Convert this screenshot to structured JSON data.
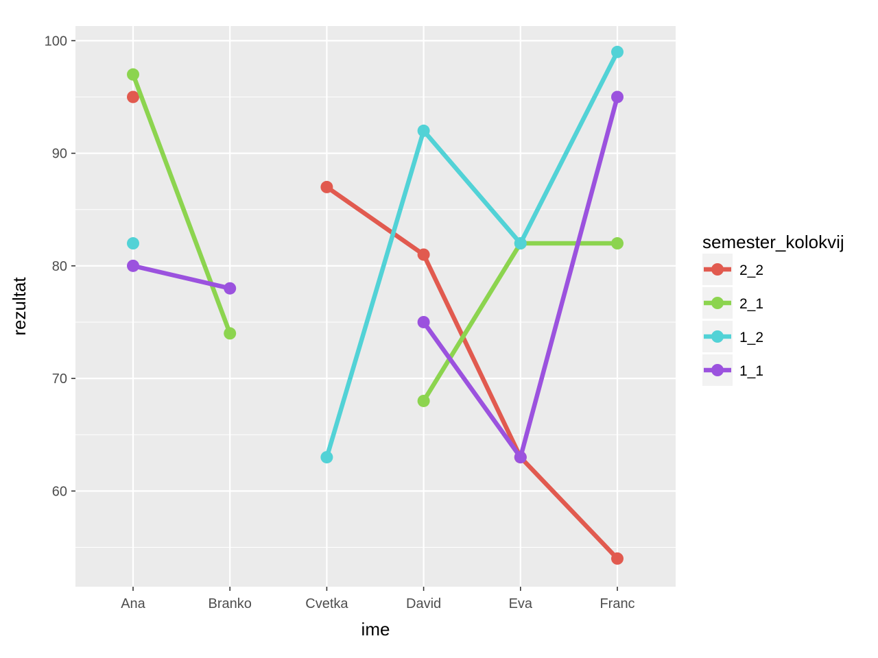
{
  "chart_data": {
    "type": "line",
    "xlabel": "ime",
    "ylabel": "rezultat",
    "categories": [
      "Ana",
      "Branko",
      "Cvetka",
      "David",
      "Eva",
      "Franc"
    ],
    "ylim": [
      51.5,
      101.3
    ],
    "yticks": [
      60,
      70,
      80,
      90,
      100
    ],
    "grid": true,
    "legend": {
      "title": "semester_kolokvij",
      "placement": "right"
    },
    "series": [
      {
        "name": "2_2",
        "color": "#e15a4f",
        "values": [
          95,
          null,
          87,
          81,
          63,
          54
        ]
      },
      {
        "name": "2_1",
        "color": "#8cd44f",
        "values": [
          97,
          74,
          null,
          68,
          82,
          82
        ]
      },
      {
        "name": "1_2",
        "color": "#52d2d6",
        "values": [
          82,
          null,
          63,
          92,
          82,
          99
        ]
      },
      {
        "name": "1_1",
        "color": "#9b52de",
        "values": [
          80,
          78,
          null,
          75,
          63,
          95
        ]
      }
    ]
  }
}
